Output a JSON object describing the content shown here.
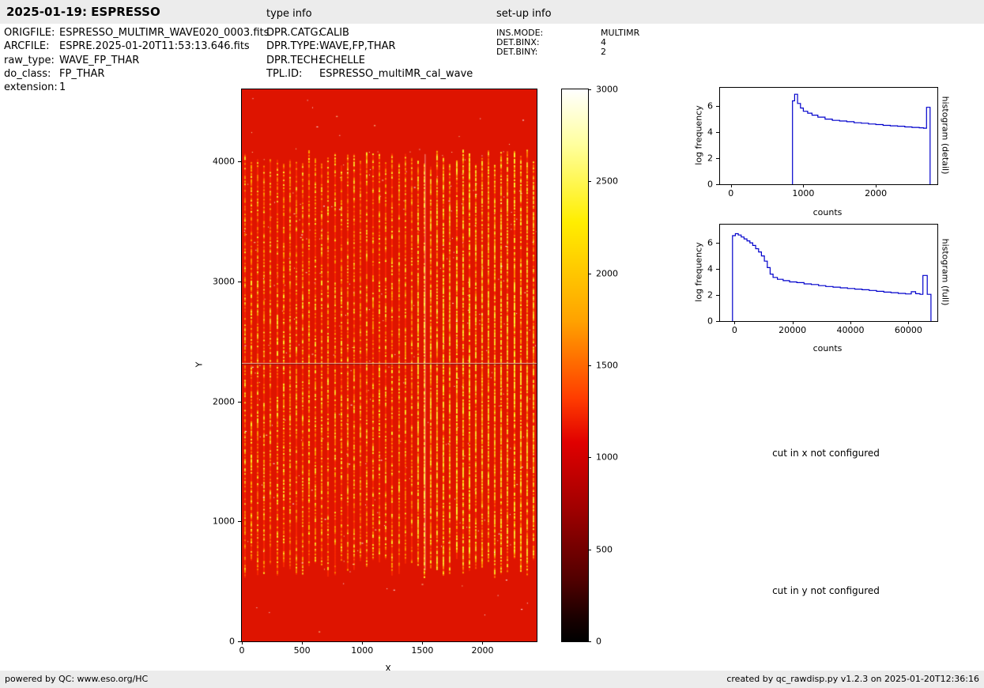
{
  "header": {
    "title": "2025-01-19: ESPRESSO",
    "type_info_label": "type info",
    "setup_info_label": "set-up info"
  },
  "metadata": {
    "left": [
      {
        "label": "ORIGFILE:",
        "value": "ESPRESSO_MULTIMR_WAVE020_0003.fits"
      },
      {
        "label": "ARCFILE:",
        "value": "ESPRE.2025-01-20T11:53:13.646.fits"
      },
      {
        "label": "raw_type:",
        "value": "WAVE_FP_THAR"
      },
      {
        "label": "do_class:",
        "value": "FP_THAR"
      },
      {
        "label": "extension:",
        "value": "1"
      }
    ],
    "middle": [
      {
        "label": "DPR.CATG:",
        "value": "CALIB"
      },
      {
        "label": "DPR.TYPE:",
        "value": "WAVE,FP,THAR"
      },
      {
        "label": "DPR.TECH:",
        "value": "ECHELLE"
      },
      {
        "label": "TPL.ID:",
        "value": "ESPRESSO_multiMR_cal_wave"
      }
    ],
    "right": [
      {
        "label": "INS.MODE:",
        "value": "MULTIMR"
      },
      {
        "label": "DET.BINX:",
        "value": "4"
      },
      {
        "label": "DET.BINY:",
        "value": "2"
      }
    ]
  },
  "messages": {
    "cut_x": "cut in x not configured",
    "cut_y": "cut in y not configured"
  },
  "footer": {
    "left": "powered by QC: www.eso.org/HC",
    "right": "created by qc_rawdisp.py v1.2.3 on 2025-01-20T12:36:16"
  },
  "chart_data": [
    {
      "type": "heatmap",
      "name": "raw-echelle-frame",
      "xlabel": "X",
      "ylabel": "Y",
      "xlim": [
        0,
        2450
      ],
      "ylim": [
        0,
        4600
      ],
      "xticks": [
        0,
        500,
        1000,
        1500,
        2000
      ],
      "yticks": [
        0,
        1000,
        2000,
        3000,
        4000
      ],
      "colormap": "hot",
      "value_range": [
        0,
        3000
      ],
      "colorbar_ticks": [
        0,
        500,
        1000,
        1500,
        2000,
        2500,
        3000
      ],
      "base_color": "#de1400",
      "features": {
        "stripe_region_y": [
          500,
          4100
        ],
        "stripe_count": 46,
        "detector_gap_y": 2320,
        "bright_column_x": 1520
      }
    },
    {
      "type": "line",
      "name": "histogram-detail",
      "xlabel": "counts",
      "ylabel": "log frequency",
      "side_label": "histogram (detail)",
      "xlim": [
        -150,
        2850
      ],
      "ylim": [
        0,
        7.4
      ],
      "xticks": [
        0,
        1000,
        2000
      ],
      "yticks": [
        0,
        2,
        4,
        6
      ],
      "line_color": "#0000cc",
      "points": [
        [
          850,
          0
        ],
        [
          850,
          6.4
        ],
        [
          880,
          6.9
        ],
        [
          920,
          6.2
        ],
        [
          960,
          5.85
        ],
        [
          1000,
          5.6
        ],
        [
          1060,
          5.45
        ],
        [
          1120,
          5.3
        ],
        [
          1200,
          5.15
        ],
        [
          1300,
          5.0
        ],
        [
          1400,
          4.9
        ],
        [
          1500,
          4.85
        ],
        [
          1600,
          4.8
        ],
        [
          1700,
          4.72
        ],
        [
          1800,
          4.68
        ],
        [
          1900,
          4.62
        ],
        [
          2000,
          4.58
        ],
        [
          2100,
          4.52
        ],
        [
          2200,
          4.48
        ],
        [
          2300,
          4.45
        ],
        [
          2400,
          4.4
        ],
        [
          2500,
          4.36
        ],
        [
          2600,
          4.33
        ],
        [
          2660,
          4.3
        ],
        [
          2700,
          5.9
        ],
        [
          2750,
          5.85
        ],
        [
          2750,
          0
        ]
      ]
    },
    {
      "type": "line",
      "name": "histogram-full",
      "xlabel": "counts",
      "ylabel": "log frequency",
      "side_label": "histogram (full)",
      "xlim": [
        -5000,
        70000
      ],
      "ylim": [
        0,
        7.4
      ],
      "xticks": [
        0,
        20000,
        40000,
        60000
      ],
      "yticks": [
        0,
        2,
        4,
        6
      ],
      "line_color": "#0000cc",
      "points": [
        [
          -700,
          0
        ],
        [
          -700,
          6.55
        ],
        [
          300,
          6.7
        ],
        [
          1300,
          6.6
        ],
        [
          2300,
          6.45
        ],
        [
          3300,
          6.3
        ],
        [
          4300,
          6.15
        ],
        [
          5300,
          6.0
        ],
        [
          6300,
          5.8
        ],
        [
          7300,
          5.55
        ],
        [
          8300,
          5.3
        ],
        [
          9300,
          5.0
        ],
        [
          10300,
          4.6
        ],
        [
          11300,
          4.1
        ],
        [
          12300,
          3.6
        ],
        [
          13300,
          3.35
        ],
        [
          14800,
          3.2
        ],
        [
          16800,
          3.1
        ],
        [
          19000,
          3.0
        ],
        [
          21500,
          2.95
        ],
        [
          24000,
          2.85
        ],
        [
          26500,
          2.8
        ],
        [
          29000,
          2.72
        ],
        [
          31500,
          2.65
        ],
        [
          34000,
          2.6
        ],
        [
          36500,
          2.55
        ],
        [
          39000,
          2.5
        ],
        [
          41500,
          2.45
        ],
        [
          44000,
          2.4
        ],
        [
          46500,
          2.35
        ],
        [
          49000,
          2.28
        ],
        [
          51500,
          2.22
        ],
        [
          54000,
          2.18
        ],
        [
          56500,
          2.12
        ],
        [
          59000,
          2.08
        ],
        [
          61000,
          2.25
        ],
        [
          62500,
          2.1
        ],
        [
          64000,
          2.05
        ],
        [
          65000,
          3.5
        ],
        [
          66500,
          3.45
        ],
        [
          66500,
          2.05
        ],
        [
          67800,
          2.0
        ],
        [
          67800,
          0
        ]
      ]
    }
  ]
}
